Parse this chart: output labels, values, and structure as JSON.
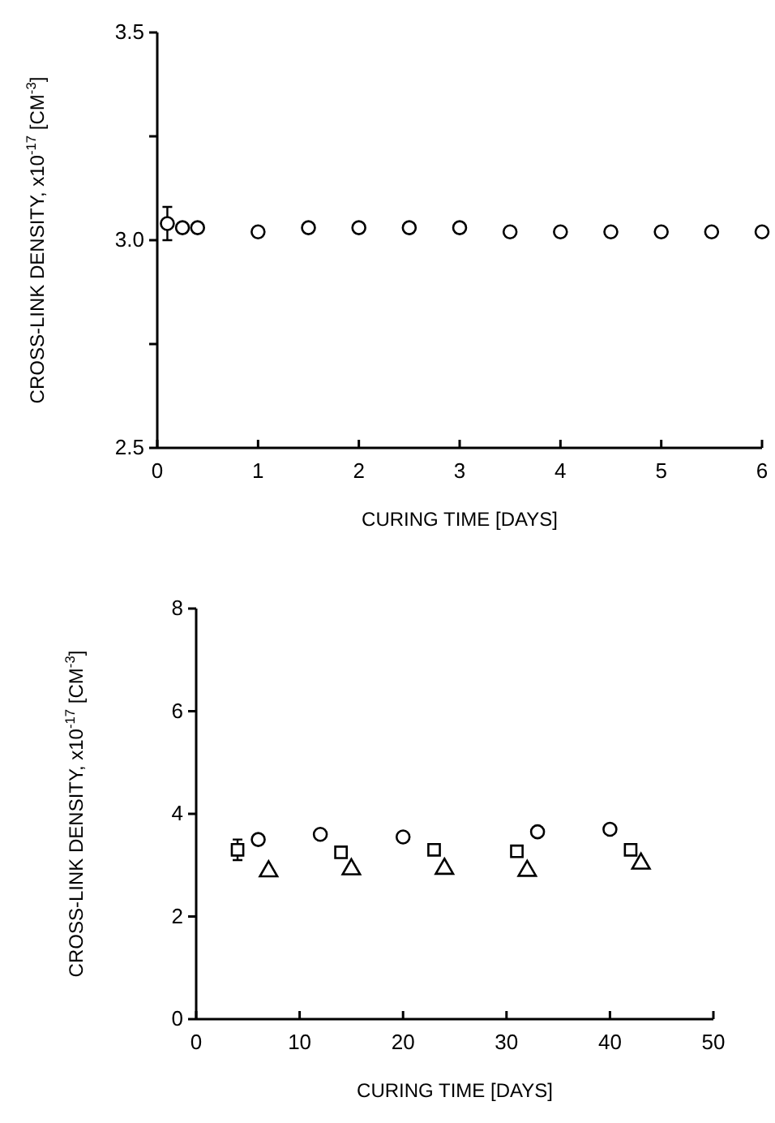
{
  "chart_data": [
    {
      "type": "scatter",
      "xlabel": "CURING TIME [DAYS]",
      "ylabel": "CROSS-LINK DENSITY, x10$^{-17}$ [CM$^{-3}$]",
      "xlim": [
        0,
        6
      ],
      "xticks": [
        0,
        1,
        2,
        3,
        4,
        5,
        6
      ],
      "ylim": [
        2.5,
        3.5
      ],
      "yticks": [
        {
          "value": 2.5,
          "label": "2.5"
        },
        {
          "value": 2.75,
          "label": null
        },
        {
          "value": 3.0,
          "label": "3.0"
        },
        {
          "value": 3.25,
          "label": null
        },
        {
          "value": 3.5,
          "label": "3.5"
        }
      ],
      "grid": false,
      "series": [
        {
          "color": "#000000",
          "marker": "circle",
          "x": [
            0.1,
            0.25,
            0.4,
            1,
            1.5,
            2,
            2.5,
            3,
            3.5,
            4,
            4.5,
            5,
            5.5,
            6
          ],
          "values": [
            3.04,
            3.03,
            3.03,
            3.02,
            3.03,
            3.03,
            3.03,
            3.03,
            3.02,
            3.02,
            3.02,
            3.02,
            3.02,
            3.02
          ],
          "errors": [
            0.04,
            null,
            null,
            null,
            null,
            null,
            null,
            null,
            null,
            null,
            null,
            null,
            null,
            null
          ]
        }
      ]
    },
    {
      "type": "scatter",
      "xlabel": "CURING TIME [DAYS]",
      "ylabel": "CROSS-LINK DENSITY, x10$^{-17}$ [CM$^{-3}$]",
      "xlim": [
        0,
        50
      ],
      "xticks": [
        0,
        10,
        20,
        30,
        40,
        50
      ],
      "ylim": [
        0,
        8
      ],
      "yticks": [
        0,
        2,
        4,
        6,
        8
      ],
      "grid": false,
      "series": [
        {
          "color": "#000000",
          "marker": "circle",
          "x": [
            6,
            12,
            20,
            33,
            40
          ],
          "values": [
            3.5,
            3.6,
            3.55,
            3.65,
            3.7
          ]
        },
        {
          "color": "#000000",
          "marker": "square",
          "x": [
            4,
            14,
            23,
            31,
            42
          ],
          "values": [
            3.3,
            3.25,
            3.3,
            3.27,
            3.3
          ],
          "errors": [
            0.2,
            null,
            null,
            null,
            null
          ]
        },
        {
          "color": "#000000",
          "marker": "triangle",
          "x": [
            7,
            15,
            24,
            32,
            43
          ],
          "values": [
            2.88,
            2.92,
            2.93,
            2.89,
            3.03
          ]
        }
      ]
    }
  ]
}
